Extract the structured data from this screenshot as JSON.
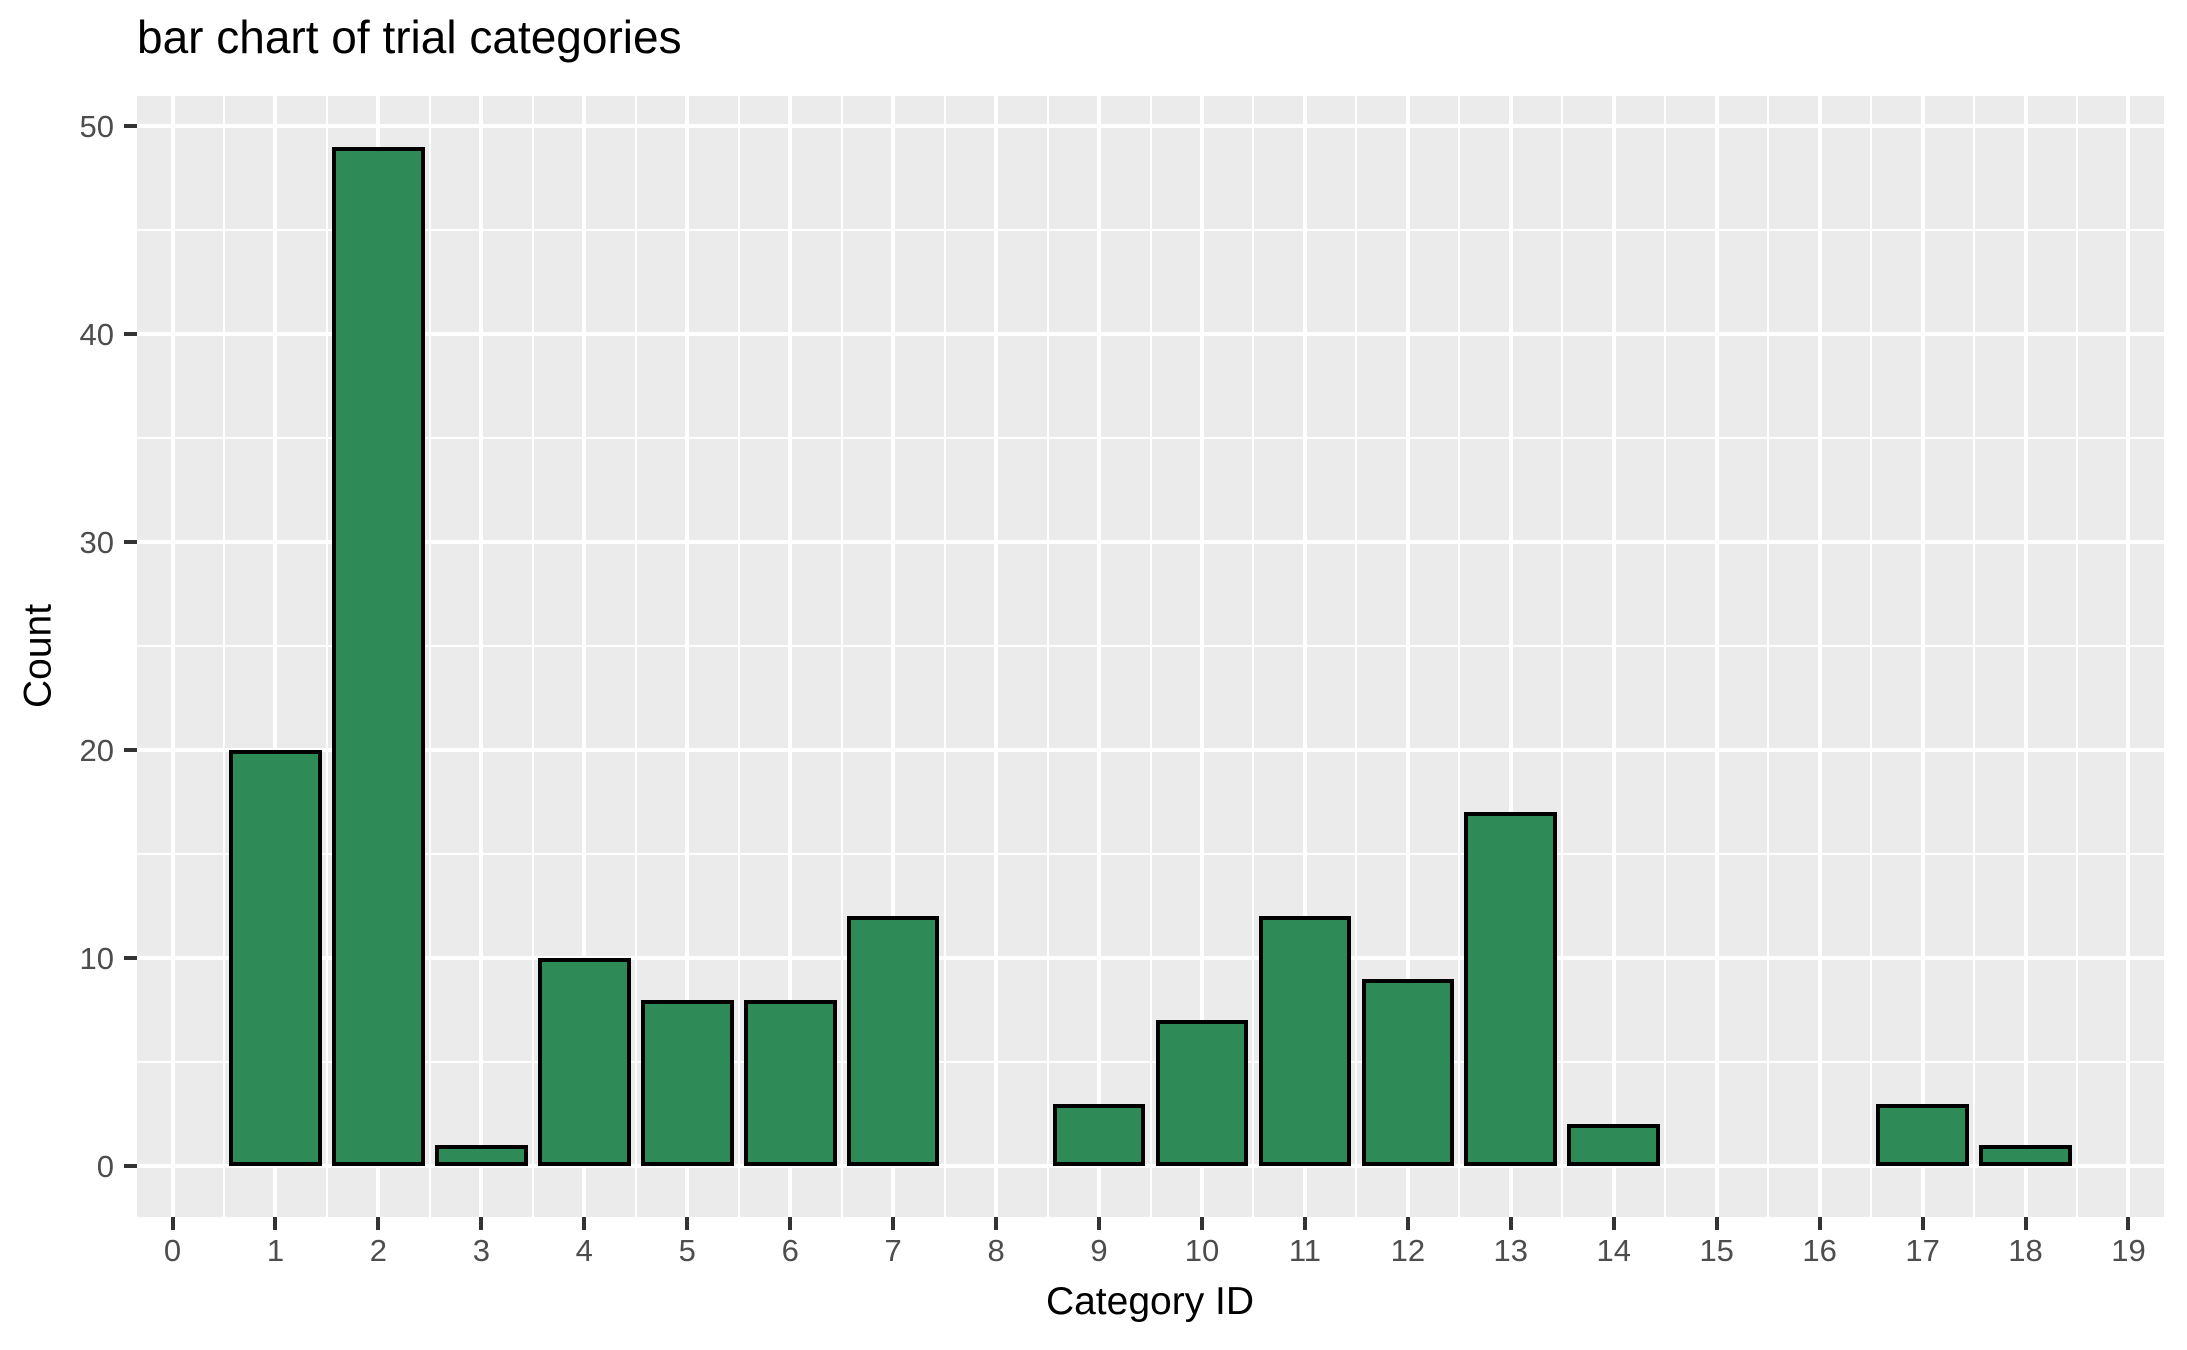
{
  "chart_data": {
    "type": "bar",
    "title": "bar chart of trial categories",
    "xlabel": "Category ID",
    "ylabel": "Count",
    "categories": [
      0,
      1,
      2,
      3,
      4,
      5,
      6,
      7,
      8,
      9,
      10,
      11,
      12,
      13,
      14,
      15,
      16,
      17,
      18,
      19
    ],
    "values": [
      0,
      20,
      49,
      1,
      10,
      8,
      8,
      12,
      0,
      3,
      7,
      12,
      9,
      17,
      2,
      0,
      0,
      3,
      1,
      0
    ],
    "x_ticks": [
      0,
      1,
      2,
      3,
      4,
      5,
      6,
      7,
      8,
      9,
      10,
      11,
      12,
      13,
      14,
      15,
      16,
      17,
      18,
      19
    ],
    "y_ticks": [
      0,
      10,
      20,
      30,
      40,
      50
    ],
    "x_minor_ticks": [
      0.5,
      1.5,
      2.5,
      3.5,
      4.5,
      5.5,
      6.5,
      7.5,
      8.5,
      9.5,
      10.5,
      11.5,
      12.5,
      13.5,
      14.5,
      15.5,
      16.5,
      17.5,
      18.5
    ],
    "y_minor_ticks": [
      5,
      15,
      25,
      35,
      45
    ],
    "x_domain": [
      -0.345,
      19.345
    ],
    "y_domain": [
      -2.45,
      51.45
    ],
    "bar_width": 0.9,
    "grid": true,
    "legend": false,
    "colors": {
      "bar_fill": "#2E8B57",
      "bar_stroke": "#000000",
      "panel_background": "#EBEBEB",
      "gridline": "#FFFFFF",
      "tick_label": "#4D4D4D",
      "axis_title": "#000000",
      "title": "#000000",
      "tick_mark": "#333333"
    }
  }
}
